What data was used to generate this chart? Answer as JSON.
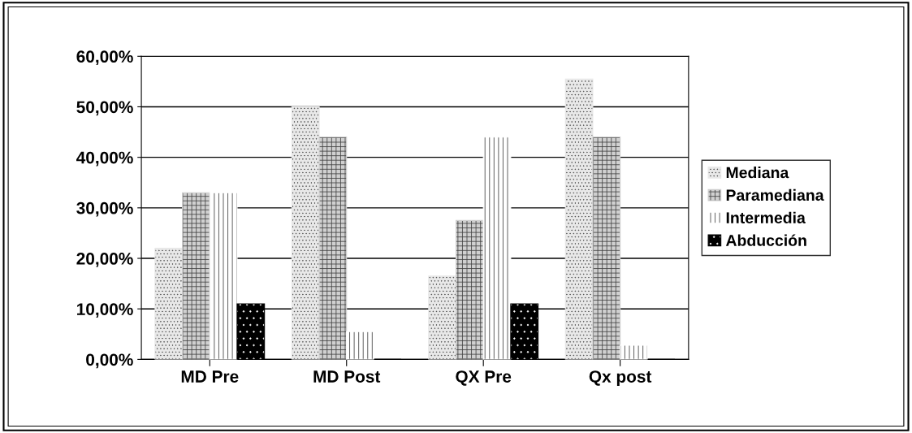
{
  "chart_data": {
    "type": "bar",
    "categories": [
      "MD Pre",
      "MD Post",
      "QX Pre",
      "Qx post"
    ],
    "series": [
      {
        "name": "Mediana",
        "color": "#e8e8e8",
        "values": [
          22,
          50,
          16.5,
          55.5
        ]
      },
      {
        "name": "Paramediana",
        "color": "#d0d0d0",
        "values": [
          33,
          44,
          27.5,
          44
        ]
      },
      {
        "name": "Intermedia",
        "color": "#ffffff",
        "values": [
          33,
          5.5,
          44,
          2.8
        ]
      },
      {
        "name": "Abducción",
        "color": "#000000",
        "values": [
          11,
          0,
          11,
          0
        ]
      }
    ],
    "ylim": [
      0,
      60
    ],
    "yticks": [
      {
        "value": 0,
        "label": "0,00%"
      },
      {
        "value": 10,
        "label": "10,00%"
      },
      {
        "value": 20,
        "label": "20,00%"
      },
      {
        "value": 30,
        "label": "30,00%"
      },
      {
        "value": 40,
        "label": "40,00%"
      },
      {
        "value": 50,
        "label": "50,00%"
      },
      {
        "value": 60,
        "label": "60,00%"
      }
    ],
    "grid": "y",
    "legend": "right"
  }
}
